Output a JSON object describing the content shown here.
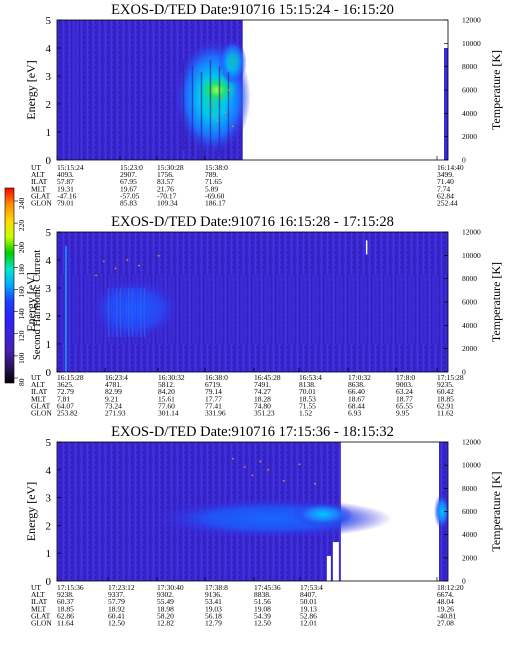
{
  "figure": {
    "colorbar": {
      "label": "Second Harmonic Current",
      "ticks": [
        "240",
        "220",
        "200",
        "180",
        "160",
        "140",
        "120",
        "100",
        "80"
      ],
      "colors": [
        "#ff0000",
        "#ff8c00",
        "#ffd700",
        "#c8ff00",
        "#00cc00",
        "#00e8c8",
        "#00a8ff",
        "#1e3cff",
        "#2a22ff",
        "#3a24d8",
        "#4a20b0",
        "#2a1460",
        "#000000"
      ]
    },
    "row_labels": [
      "UT",
      "ALT",
      "ILAT",
      "MLT",
      "GLAT",
      "GLON"
    ]
  },
  "chart_data": [
    {
      "type": "heatmap",
      "title": "EXOS-D/TED  Date:910716  15:15:24 - 16:15:20",
      "ylabel": "Energy [eV]",
      "y2label": "Temperature [K]",
      "ylim": [
        0,
        5
      ],
      "yticks": [
        "0",
        "1",
        "2",
        "3",
        "4",
        "5"
      ],
      "y2lim": [
        0,
        12000
      ],
      "y2ticks": [
        "0",
        "2000",
        "4000",
        "6000",
        "8000",
        "10000",
        "12000"
      ],
      "x": [
        "15:15:24",
        "15:23:0",
        "15:30:28",
        "15:38:0",
        "16:14:40"
      ],
      "ephemeris": {
        "UT": [
          "15:15:24",
          "15:23:0",
          "15:30:28",
          "15:38:0",
          "16:14:40"
        ],
        "ALT": [
          "4093.",
          "2907.",
          "1756.",
          "789.",
          "3499."
        ],
        "ILAT": [
          "57.87",
          "67.95",
          "83.57",
          "71.65",
          "71.40"
        ],
        "MLT": [
          "19.31",
          "19.67",
          "21.76",
          "5.89",
          "7.74"
        ],
        "GLAT": [
          "-47.16",
          "-57.05",
          "-70.17",
          "-69.60",
          "62.84"
        ],
        "GLON": [
          "79.01",
          "85.83",
          "109.34",
          "186.17",
          "252.44"
        ]
      },
      "data_coverage_ut": [
        "15:15:24",
        "15:38:0"
      ],
      "features": [
        {
          "kind": "enhancement",
          "ut": [
            "15:27:0",
            "15:38:0"
          ],
          "energy_ev": [
            0.5,
            3.5
          ],
          "level": "120-180"
        },
        {
          "kind": "peak",
          "ut": [
            "15:31:0",
            "15:36:0"
          ],
          "energy_ev": [
            1.6,
            2.6
          ],
          "level": "160-180"
        }
      ]
    },
    {
      "type": "heatmap",
      "title": "EXOS-D/TED  Date:910716  16:15:28 - 17:15:28",
      "ylabel": "Energy [eV]",
      "y2label": "Temperature [K]",
      "ylim": [
        0,
        5
      ],
      "yticks": [
        "0",
        "1",
        "2",
        "3",
        "4",
        "5"
      ],
      "y2lim": [
        0,
        12000
      ],
      "y2ticks": [
        "0",
        "2000",
        "4000",
        "6000",
        "8000",
        "10000",
        "12000"
      ],
      "x": [
        "16:15:28",
        "16:23:4",
        "16:30:32",
        "16:38:0",
        "16:45:28",
        "16:53:4",
        "17:0:32",
        "17:8:0",
        "17:15:28"
      ],
      "ephemeris": {
        "UT": [
          "16:15:28",
          "16:23:4",
          "16:30:32",
          "16:38:0",
          "16:45:28",
          "16:53:4",
          "17:0:32",
          "17:8:0",
          "17:15:28"
        ],
        "ALT": [
          "3625.",
          "4781.",
          "5812.",
          "6719.",
          "7491.",
          "8138.",
          "8638.",
          "9003.",
          "9235."
        ],
        "ILAT": [
          "72.79",
          "82.99",
          "84.20",
          "79.14",
          "74.27",
          "70.01",
          "66.40",
          "63.24",
          "60.42"
        ],
        "MLT": [
          "7.81",
          "9.21",
          "15.61",
          "17.77",
          "18.28",
          "18.53",
          "18.67",
          "18.77",
          "18.85"
        ],
        "GLAT": [
          "64.07",
          "73.24",
          "77.60",
          "77.41",
          "74.80",
          "71.55",
          "68.44",
          "65.55",
          "62.91"
        ],
        "GLON": [
          "253.82",
          "271.93",
          "301.14",
          "331.96",
          "351.23",
          "1.52",
          "6.93",
          "9.95",
          "11.62"
        ]
      },
      "data_coverage_ut": [
        "16:15:28",
        "17:15:28"
      ],
      "features": [
        {
          "kind": "enhancement",
          "ut": [
            "16:22:0",
            "16:35:0"
          ],
          "energy_ev": [
            1.0,
            3.2
          ],
          "level": "110-130"
        }
      ]
    },
    {
      "type": "heatmap",
      "title": "EXOS-D/TED  Date:910716  17:15:36 - 18:15:32",
      "ylabel": "Energy [eV]",
      "y2label": "Temperature [K]",
      "ylim": [
        0,
        5
      ],
      "yticks": [
        "0",
        "1",
        "2",
        "3",
        "4",
        "5"
      ],
      "y2lim": [
        0,
        12000
      ],
      "y2ticks": [
        "0",
        "2000",
        "4000",
        "6000",
        "8000",
        "10000",
        "12000"
      ],
      "x": [
        "17:15:36",
        "17:23:12",
        "17:30:40",
        "17:38:8",
        "17:45:36",
        "17:53:4",
        "18:12:20"
      ],
      "ephemeris": {
        "UT": [
          "17:15:36",
          "17:23:12",
          "17:30:40",
          "17:38:8",
          "17:45:36",
          "17:53:4",
          "18:12:20"
        ],
        "ALT": [
          "9238.",
          "9337.",
          "9302.",
          "9136.",
          "8838.",
          "8407.",
          "6674."
        ],
        "ILAT": [
          "60.37",
          "57.79",
          "55.49",
          "53.41",
          "51.56",
          "50.01",
          "48.04"
        ],
        "MLT": [
          "18.85",
          "18.92",
          "18.98",
          "19.03",
          "19.08",
          "19.13",
          "19.26"
        ],
        "GLAT": [
          "62.86",
          "60.41",
          "58.20",
          "56.18",
          "54.39",
          "52.86",
          "-40.81"
        ],
        "GLON": [
          "11.64",
          "12.50",
          "12.82",
          "12.79",
          "12.50",
          "12.01",
          "27.08"
        ]
      },
      "data_coverage_ut": [
        [
          "17:15:36",
          "17:53:4"
        ],
        [
          "18:10:0",
          "18:15:32"
        ]
      ],
      "features": [
        {
          "kind": "band",
          "ut": [
            "17:38:0",
            "17:53:4"
          ],
          "energy_ev": [
            2.2,
            3.0
          ],
          "level": "100-130"
        }
      ]
    }
  ]
}
